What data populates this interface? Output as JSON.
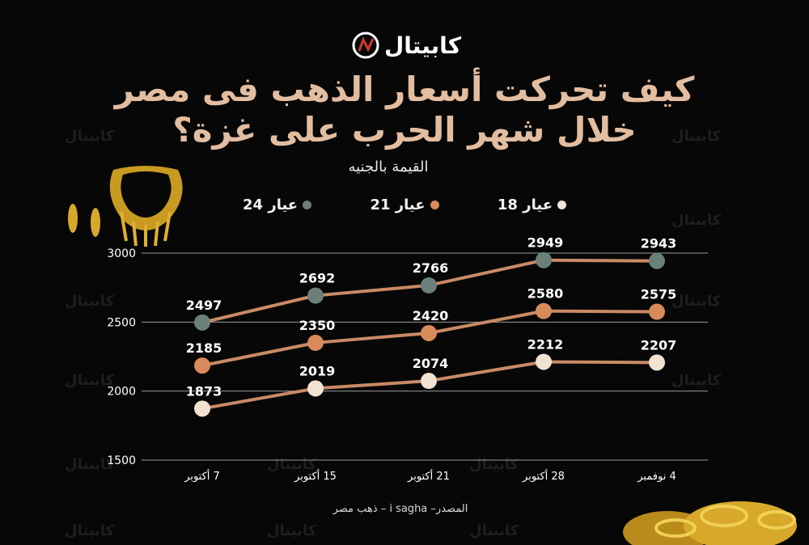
{
  "brand": {
    "logo_text": "كابيتال"
  },
  "watermark_text": "كابيتال",
  "title_line1": "كيف تحركت أسعار الذهب فى مصر",
  "title_line2": "خلال شهر الحرب على غزة؟",
  "unit_label": "القيمة بالجنيه",
  "legend": [
    {
      "label": "عيار 24",
      "color": "#6b8078"
    },
    {
      "label": "عيار 21",
      "color": "#d98a5a"
    },
    {
      "label": "عيار 18",
      "color": "#f2e2d2"
    }
  ],
  "source_text": "المصدر– i sagha – ذهب مصر",
  "colors": {
    "line": "#c98a65",
    "background": "#070707",
    "title": "#e2bda0",
    "gold": "#e0b030"
  },
  "chart_data": {
    "type": "line",
    "title": "كيف تحركت أسعار الذهب فى مصر خلال شهر الحرب على غزة؟",
    "ylabel": "القيمة بالجنيه",
    "xlabel": "",
    "categories": [
      "7 أكتوبر",
      "15 أكتوبر",
      "21 أكتوبر",
      "28 أكتوبر",
      "4 نوفمبر"
    ],
    "ylim": [
      1500,
      3000
    ],
    "yticks": [
      1500,
      2000,
      2500,
      3000
    ],
    "grid": true,
    "legend_position": "top",
    "series": [
      {
        "name": "عيار 24",
        "values": [
          2497,
          2692,
          2766,
          2949,
          2943
        ],
        "marker_color": "#6b8078"
      },
      {
        "name": "عيار 21",
        "values": [
          2185,
          2350,
          2420,
          2580,
          2575
        ],
        "marker_color": "#d98a5a"
      },
      {
        "name": "عيار 18",
        "values": [
          1873,
          2019,
          2074,
          2212,
          2207
        ],
        "marker_color": "#f2e2d2"
      }
    ]
  }
}
